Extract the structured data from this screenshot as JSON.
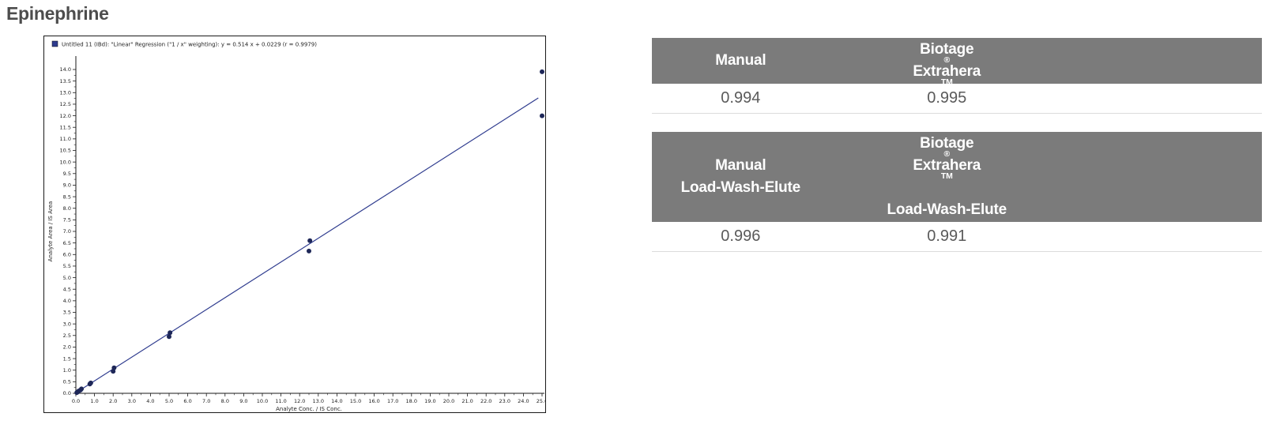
{
  "page": {
    "title": "Epinephrine"
  },
  "chart_data": {
    "type": "scatter",
    "legend": "Untitled 11 (IBd): \"Linear\" Regression (\"1 / x\" weighting): y = 0.514 x + 0.0229 (r = 0.9979)",
    "xlabel": "Analyte Conc. / IS Conc.",
    "ylabel": "Analyte Area / IS Area",
    "xlim": [
      0,
      25
    ],
    "ylim": [
      0,
      14
    ],
    "x_tick_step": 1.0,
    "x_minor_step": 0.5,
    "y_tick_step": 0.5,
    "y_minor_step": 0.25,
    "grid": false,
    "legend_position": "top-left",
    "regression": {
      "slope": 0.514,
      "intercept": 0.0229,
      "r": 0.9979,
      "x_start": 0.0,
      "x_end": 24.8
    },
    "points": [
      [
        0.05,
        0.03
      ],
      [
        0.1,
        0.06
      ],
      [
        0.15,
        0.1
      ],
      [
        0.25,
        0.14
      ],
      [
        0.3,
        0.19
      ],
      [
        0.75,
        0.4
      ],
      [
        0.8,
        0.45
      ],
      [
        2.0,
        0.95
      ],
      [
        2.05,
        1.1
      ],
      [
        5.0,
        2.45
      ],
      [
        5.05,
        2.62
      ],
      [
        12.5,
        6.15
      ],
      [
        12.55,
        6.6
      ],
      [
        25.0,
        12.0
      ],
      [
        25.0,
        13.9
      ]
    ],
    "point_color": "#1e2758",
    "line_color": "#2e3b8e",
    "axis_color": "#1a1a1a"
  },
  "tables": [
    {
      "columns": [
        {
          "header_lines": [
            "Manual"
          ],
          "value": "0.994"
        },
        {
          "header_lines": [
            "Biotage® Extrahera™"
          ],
          "value": "0.995"
        }
      ]
    },
    {
      "columns": [
        {
          "header_lines": [
            "Manual",
            "Load-Wash-Elute"
          ],
          "value": "0.996"
        },
        {
          "header_lines": [
            "Biotage® Extrahera™",
            "Load-Wash-Elute"
          ],
          "value": "0.991"
        }
      ]
    }
  ],
  "colors": {
    "header_bg": "#7b7b7b",
    "header_text": "#ffffff",
    "value_text": "#5a5a5a",
    "title_text": "#4d4d4d"
  }
}
